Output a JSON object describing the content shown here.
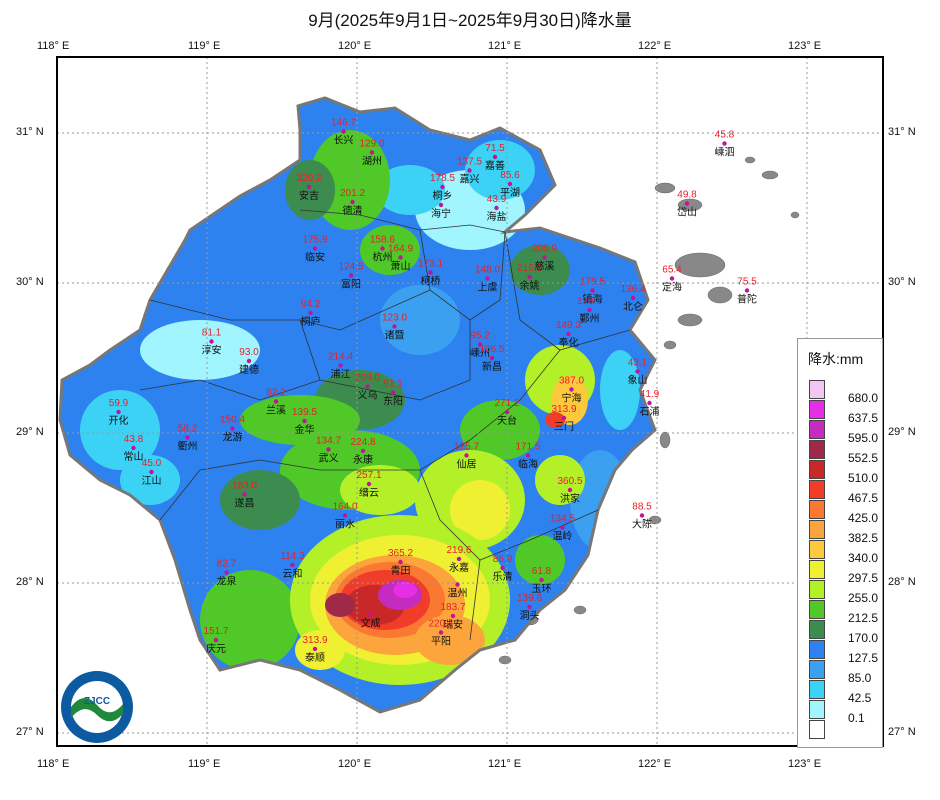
{
  "title": "9月(2025年9月1日~2025年9月30日)降水量",
  "axes": {
    "lon_labels": [
      "118° E",
      "119° E",
      "120° E",
      "121° E",
      "122° E",
      "123° E"
    ],
    "lat_labels": [
      "31° N",
      "30° N",
      "29° N",
      "28° N",
      "27° N"
    ]
  },
  "legend": {
    "title": "降水:mm",
    "levels": [
      {
        "value": "680.0",
        "color": "#f2c6f2"
      },
      {
        "value": "637.5",
        "color": "#e62ee6"
      },
      {
        "value": "595.0",
        "color": "#c42cbf"
      },
      {
        "value": "552.5",
        "color": "#a0294a"
      },
      {
        "value": "510.0",
        "color": "#c82828"
      },
      {
        "value": "467.5",
        "color": "#f03c28"
      },
      {
        "value": "425.0",
        "color": "#fa7832"
      },
      {
        "value": "382.5",
        "color": "#fca53c"
      },
      {
        "value": "340.0",
        "color": "#fcc83c"
      },
      {
        "value": "297.5",
        "color": "#f0f032"
      },
      {
        "value": "255.0",
        "color": "#b4f028"
      },
      {
        "value": "212.5",
        "color": "#50c828"
      },
      {
        "value": "170.0",
        "color": "#3c8c50"
      },
      {
        "value": "127.5",
        "color": "#2d82f0"
      },
      {
        "value": "85.0",
        "color": "#3ca0f0"
      },
      {
        "value": "42.5",
        "color": "#3cd2f5"
      },
      {
        "value": "0.1",
        "color": "#a0f5ff"
      },
      {
        "value": "",
        "color": "#ffffff"
      }
    ]
  },
  "logo": {
    "text": "ZHEJIANG CLIMATE CENTER",
    "abbr": "ZJCC",
    "city": "HANGZHOU CHINA"
  },
  "stations": [
    {
      "name": "长兴",
      "value": "146.7",
      "lon": 119.91,
      "lat": 31.01
    },
    {
      "name": "湖州",
      "value": "129.0",
      "lon": 120.1,
      "lat": 30.87
    },
    {
      "name": "嘉善",
      "value": "71.5",
      "lon": 120.92,
      "lat": 30.84
    },
    {
      "name": "嘉兴",
      "value": "137.5",
      "lon": 120.75,
      "lat": 30.75
    },
    {
      "name": "平湖",
      "value": "85.6",
      "lon": 121.02,
      "lat": 30.66
    },
    {
      "name": "嵊泗",
      "value": "45.8",
      "lon": 122.45,
      "lat": 30.93
    },
    {
      "name": "安吉",
      "value": "320.2",
      "lon": 119.68,
      "lat": 30.64
    },
    {
      "name": "德清",
      "value": "201.2",
      "lon": 119.97,
      "lat": 30.54
    },
    {
      "name": "桐乡",
      "value": "178.5",
      "lon": 120.57,
      "lat": 30.64
    },
    {
      "name": "海宁",
      "value": "",
      "lon": 120.56,
      "lat": 30.52
    },
    {
      "name": "海盐",
      "value": "43.9",
      "lon": 120.93,
      "lat": 30.5
    },
    {
      "name": "岱山",
      "value": "49.8",
      "lon": 122.2,
      "lat": 30.53
    },
    {
      "name": "临安",
      "value": "175.9",
      "lon": 119.72,
      "lat": 30.23
    },
    {
      "name": "杭州",
      "value": "158.6",
      "lon": 120.17,
      "lat": 30.23
    },
    {
      "name": "萧山",
      "value": "164.9",
      "lon": 120.29,
      "lat": 30.17
    },
    {
      "name": "富阳",
      "value": "124.5",
      "lon": 119.96,
      "lat": 30.05
    },
    {
      "name": "柯桥",
      "value": "173.1",
      "lon": 120.49,
      "lat": 30.07
    },
    {
      "name": "上虞",
      "value": "148.0",
      "lon": 120.87,
      "lat": 30.03
    },
    {
      "name": "余姚",
      "value": "216.9",
      "lon": 121.15,
      "lat": 30.04
    },
    {
      "name": "慈溪",
      "value": "208.9",
      "lon": 121.25,
      "lat": 30.17
    },
    {
      "name": "镇海",
      "value": "179.5",
      "lon": 121.57,
      "lat": 29.95
    },
    {
      "name": "北仑",
      "value": "136.4",
      "lon": 121.84,
      "lat": 29.9
    },
    {
      "name": "定海",
      "value": "65.4",
      "lon": 122.1,
      "lat": 30.03
    },
    {
      "name": "普陀",
      "value": "75.5",
      "lon": 122.6,
      "lat": 29.95
    },
    {
      "name": "鄞州",
      "value": "128.1",
      "lon": 121.55,
      "lat": 29.82
    },
    {
      "name": "桐庐",
      "value": "94.2",
      "lon": 119.69,
      "lat": 29.8
    },
    {
      "name": "奉化",
      "value": "149.3",
      "lon": 121.41,
      "lat": 29.66
    },
    {
      "name": "淳安",
      "value": "81.1",
      "lon": 119.03,
      "lat": 29.61
    },
    {
      "name": "诸暨",
      "value": "123.0",
      "lon": 120.25,
      "lat": 29.71
    },
    {
      "name": "嵊州",
      "value": "95.2",
      "lon": 120.82,
      "lat": 29.59
    },
    {
      "name": "新昌",
      "value": "106.5",
      "lon": 120.9,
      "lat": 29.5
    },
    {
      "name": "建德",
      "value": "93.0",
      "lon": 119.28,
      "lat": 29.48
    },
    {
      "name": "浦江",
      "value": "214.4",
      "lon": 119.89,
      "lat": 29.45
    },
    {
      "name": "义乌",
      "value": "209.0",
      "lon": 120.07,
      "lat": 29.31
    },
    {
      "name": "宁海",
      "value": "387.0",
      "lon": 121.43,
      "lat": 29.29
    },
    {
      "name": "象山",
      "value": "43.1",
      "lon": 121.87,
      "lat": 29.41
    },
    {
      "name": "东阳",
      "value": "91.1",
      "lon": 120.24,
      "lat": 29.27
    },
    {
      "name": "兰溪",
      "value": "82.2",
      "lon": 119.46,
      "lat": 29.21
    },
    {
      "name": "金华",
      "value": "139.5",
      "lon": 119.65,
      "lat": 29.08
    },
    {
      "name": "石浦",
      "value": "41.9",
      "lon": 121.95,
      "lat": 29.2
    },
    {
      "name": "开化",
      "value": "59.9",
      "lon": 118.41,
      "lat": 29.14
    },
    {
      "name": "龙游",
      "value": "150.4",
      "lon": 119.17,
      "lat": 29.03
    },
    {
      "name": "衢州",
      "value": "58.2",
      "lon": 118.87,
      "lat": 28.97
    },
    {
      "name": "天台",
      "value": "271.2",
      "lon": 121.0,
      "lat": 29.14
    },
    {
      "name": "三门",
      "value": "313.9",
      "lon": 121.38,
      "lat": 29.1
    },
    {
      "name": "常山",
      "value": "43.8",
      "lon": 118.51,
      "lat": 28.9
    },
    {
      "name": "武义",
      "value": "134.7",
      "lon": 119.81,
      "lat": 28.89
    },
    {
      "name": "永康",
      "value": "224.8",
      "lon": 120.04,
      "lat": 28.88
    },
    {
      "name": "仙居",
      "value": "125.7",
      "lon": 120.73,
      "lat": 28.85
    },
    {
      "name": "临海",
      "value": "171.5",
      "lon": 121.14,
      "lat": 28.85
    },
    {
      "name": "江山",
      "value": "45.0",
      "lon": 118.63,
      "lat": 28.74
    },
    {
      "name": "缙云",
      "value": "257.1",
      "lon": 120.08,
      "lat": 28.66
    },
    {
      "name": "洪家",
      "value": "360.5",
      "lon": 121.42,
      "lat": 28.62
    },
    {
      "name": "遂昌",
      "value": "183.0",
      "lon": 119.25,
      "lat": 28.59
    },
    {
      "name": "大陈",
      "value": "88.5",
      "lon": 121.9,
      "lat": 28.45
    },
    {
      "name": "温岭",
      "value": "134.5",
      "lon": 121.37,
      "lat": 28.37
    },
    {
      "name": "丽水",
      "value": "164.0",
      "lon": 119.92,
      "lat": 28.45
    },
    {
      "name": "青田",
      "value": "365.2",
      "lon": 120.29,
      "lat": 28.14
    },
    {
      "name": "永嘉",
      "value": "219.6",
      "lon": 120.68,
      "lat": 28.16
    },
    {
      "name": "云和",
      "value": "114.3",
      "lon": 119.57,
      "lat": 28.12
    },
    {
      "name": "龙泉",
      "value": "82.7",
      "lon": 119.13,
      "lat": 28.07
    },
    {
      "name": "乐清",
      "value": "86.9",
      "lon": 120.97,
      "lat": 28.1
    },
    {
      "name": "温州",
      "value": "",
      "lon": 120.67,
      "lat": 27.99
    },
    {
      "name": "玉环",
      "value": "61.8",
      "lon": 121.23,
      "lat": 28.02
    },
    {
      "name": "洞头",
      "value": "139.6",
      "lon": 121.15,
      "lat": 27.84
    },
    {
      "name": "瑞安",
      "value": "183.7",
      "lon": 120.64,
      "lat": 27.78
    },
    {
      "name": "文成",
      "value": "",
      "lon": 120.09,
      "lat": 27.79
    },
    {
      "name": "平阳",
      "value": "220.1",
      "lon": 120.56,
      "lat": 27.67
    },
    {
      "name": "庆元",
      "value": "151.7",
      "lon": 119.06,
      "lat": 27.62
    },
    {
      "name": "泰顺",
      "value": "313.9",
      "lon": 119.72,
      "lat": 27.56
    }
  ]
}
